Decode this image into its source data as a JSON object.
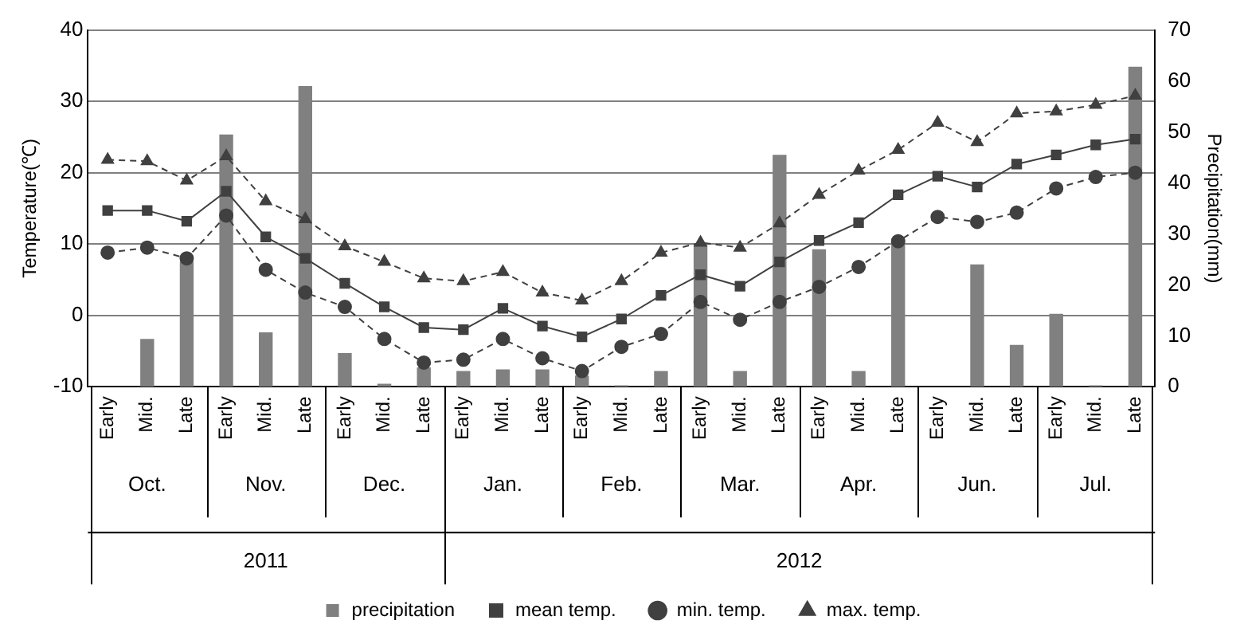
{
  "chart_data": {
    "type": "line",
    "categories": [
      "Early",
      "Mid.",
      "Late",
      "Early",
      "Mid.",
      "Late",
      "Early",
      "Mid.",
      "Late",
      "Early",
      "Mid.",
      "Late",
      "Early",
      "Mid.",
      "Late",
      "Early",
      "Mid.",
      "Late",
      "Early",
      "Mid.",
      "Late",
      "Early",
      "Mid.",
      "Late",
      "Early",
      "Mid.",
      "Late"
    ],
    "annotations": [
      "Oct.",
      "Nov.",
      "Dec.",
      "Jan.",
      "Feb.",
      "Mar.",
      "Apr.",
      "Jun.",
      "Jul.",
      "2011",
      "2012"
    ],
    "series": [
      {
        "name": "precipitation",
        "type": "bar",
        "axis": "y2",
        "color": "#808080",
        "values": [
          0,
          9.4,
          24.5,
          49.5,
          10.7,
          59,
          6.6,
          0.6,
          3.8,
          3.1,
          3.4,
          3.4,
          2.2,
          0.3,
          3.1,
          28,
          3.1,
          45.5,
          27,
          3.1,
          29,
          0,
          24,
          8.2,
          14.3,
          0.3,
          62.8
        ]
      },
      {
        "name": "mean temp.",
        "color": "#404040",
        "marker": "square",
        "line_style": "solid",
        "values": [
          14.7,
          14.7,
          13.2,
          17.4,
          11,
          8,
          4.5,
          1.2,
          -1.7,
          -2,
          1,
          -1.5,
          -3,
          -0.5,
          2.8,
          5.7,
          4.1,
          7.5,
          10.5,
          13,
          16.9,
          19.5,
          18,
          21.2,
          22.5,
          23.9,
          24.7
        ]
      },
      {
        "name": "min. temp.",
        "color": "#404040",
        "marker": "circle",
        "line_style": "dashed",
        "values": [
          8.8,
          9.5,
          8,
          14,
          6.4,
          3.2,
          1.2,
          -3.3,
          -6.6,
          -6.2,
          -3.3,
          -6,
          -7.8,
          -4.4,
          -2.6,
          1.9,
          -0.6,
          1.9,
          4,
          6.8,
          10.4,
          13.8,
          13.1,
          14.4,
          17.8,
          19.4,
          20
        ]
      },
      {
        "name": "max. temp.",
        "color": "#404040",
        "marker": "triangle",
        "line_style": "dashed",
        "values": [
          21.8,
          21.6,
          18.9,
          22.3,
          16,
          13.5,
          9.7,
          7.5,
          5.2,
          4.8,
          6.1,
          3.2,
          2.1,
          4.8,
          8.8,
          10.2,
          9.5,
          12.9,
          16.9,
          20.3,
          23.2,
          27,
          24.3,
          28.3,
          28.6,
          29.5,
          30.8
        ]
      }
    ],
    "ylabel": "Temperature(℃)",
    "y2label": "Precipitation(mm)",
    "ylim": [
      -10,
      40
    ],
    "yticks": [
      -10,
      0,
      10,
      20,
      30,
      40
    ],
    "y2lim": [
      0,
      70
    ],
    "y2ticks": [
      0,
      10,
      20,
      30,
      40,
      50,
      60,
      70
    ],
    "grid": "y",
    "legend": "bottom"
  }
}
